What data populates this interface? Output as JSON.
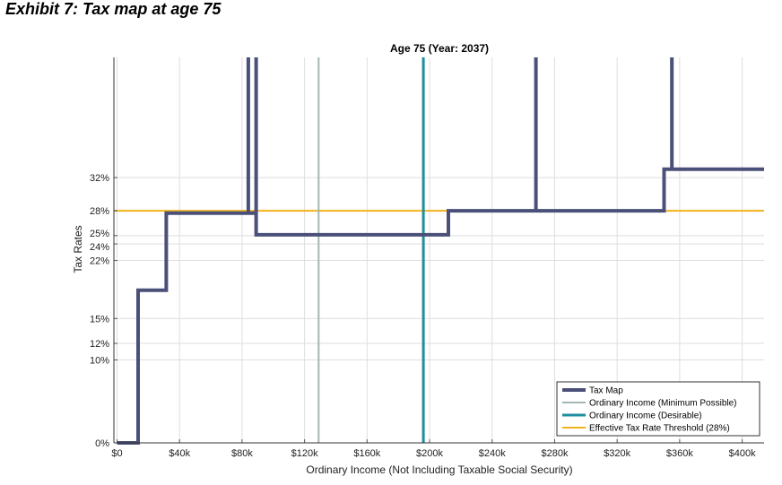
{
  "page": {
    "exhibit_title": "Exhibit 7: Tax map at age 75"
  },
  "chart_data": {
    "type": "line",
    "title": "Age 75 (Year: 2037)",
    "xlabel": "Ordinary Income (Not Including Taxable Social Security)",
    "ylabel": "Tax Rates",
    "xlim": [
      -2000,
      414000
    ],
    "ylim": [
      0,
      0.465
    ],
    "x_ticks": [
      0,
      40000,
      80000,
      120000,
      160000,
      200000,
      240000,
      280000,
      320000,
      360000,
      400000
    ],
    "x_tick_labels": [
      "$0",
      "$40k",
      "$80k",
      "$120k",
      "$160k",
      "$200k",
      "$240k",
      "$280k",
      "$320k",
      "$360k",
      "$400k"
    ],
    "y_ticks": [
      0,
      0.1,
      0.12,
      0.15,
      0.22,
      0.24,
      0.25,
      0.28,
      0.32
    ],
    "y_tick_labels": [
      "0%",
      "10%",
      "12%",
      "15%",
      "22%",
      "24%",
      "25%",
      "28%",
      "32%"
    ],
    "grid": true,
    "legend": "bottom-right",
    "series": [
      {
        "name": "Tax Map",
        "color": "#4a5078",
        "x": [
          0,
          13500,
          13500,
          31500,
          31500,
          84000,
          84000,
          84000,
          89000,
          89000,
          89000,
          212000,
          212000,
          268000,
          268000,
          268000,
          350000,
          350000,
          355000,
          355000,
          355000,
          414000
        ],
        "y": [
          0,
          0,
          0.184,
          0.184,
          0.277,
          0.277,
          0.465,
          0.277,
          0.277,
          0.465,
          0.251,
          0.251,
          0.28,
          0.28,
          0.465,
          0.28,
          0.28,
          0.33,
          0.33,
          0.465,
          0.33,
          0.33
        ]
      },
      {
        "name": "Ordinary Income (Minimum Possible)",
        "color": "#a3b5b5",
        "x": [
          129000,
          129000
        ],
        "y": [
          0,
          0.465
        ]
      },
      {
        "name": "Ordinary Income (Desirable)",
        "color": "#1e8fa0",
        "x": [
          196000,
          196000
        ],
        "y": [
          0,
          0.465
        ]
      },
      {
        "name": "Effective Tax Rate Threshold (28%)",
        "color": "#f2b21a",
        "x": [
          -2000,
          414000
        ],
        "y": [
          0.28,
          0.28
        ]
      }
    ]
  }
}
